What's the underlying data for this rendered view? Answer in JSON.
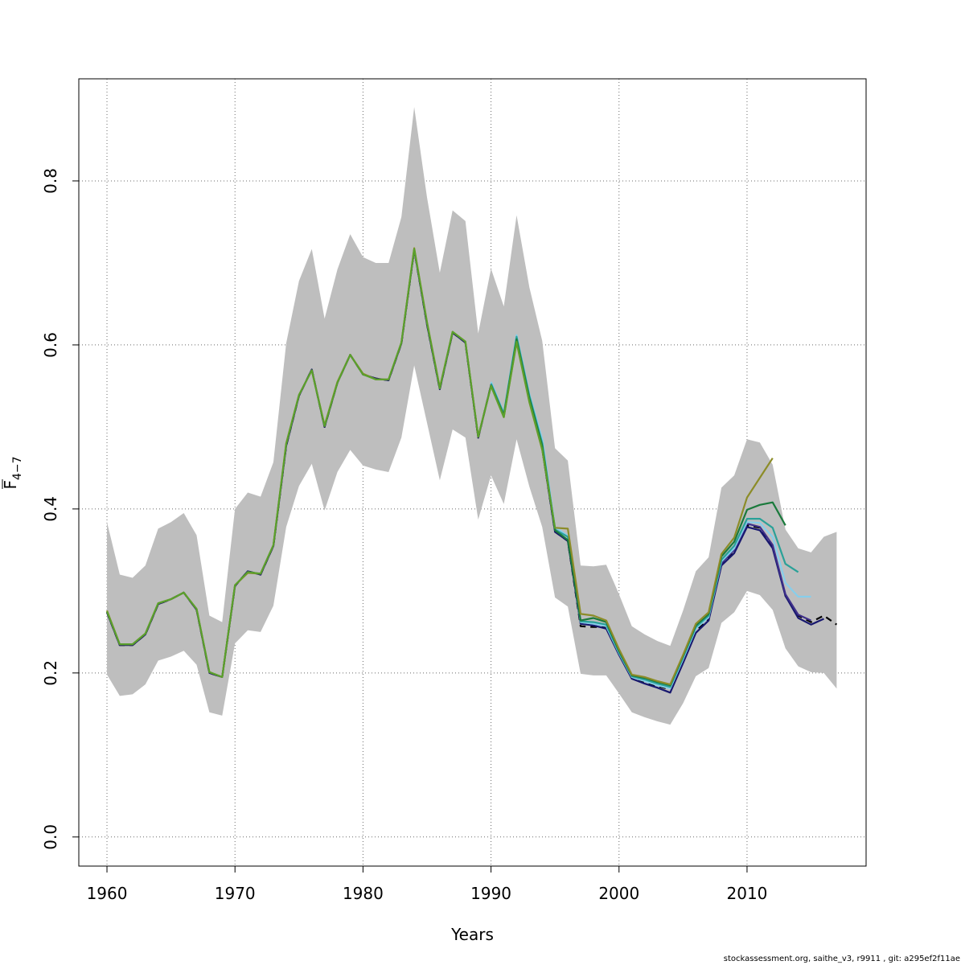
{
  "chart_data": {
    "type": "line",
    "xlabel": "Years",
    "ylabel_base": "F",
    "ylabel_sub": "4−7",
    "xlim": [
      1957.8,
      2019.3
    ],
    "ylim": [
      -0.0355,
      0.9245
    ],
    "x_ticks": [
      1960,
      1970,
      1980,
      1990,
      2000,
      2010
    ],
    "x_tick_labels": [
      "1960",
      "1970",
      "1980",
      "1990",
      "2000",
      "2010"
    ],
    "y_ticks": [
      0.0,
      0.2,
      0.4,
      0.6,
      0.8
    ],
    "y_tick_labels": [
      "0.0",
      "0.2",
      "0.4",
      "0.6",
      "0.8"
    ],
    "grid": true,
    "band_color": "#bebebe",
    "confidence_band": {
      "x": [
        1960,
        1961,
        1962,
        1963,
        1964,
        1965,
        1966,
        1967,
        1968,
        1969,
        1970,
        1971,
        1972,
        1973,
        1974,
        1975,
        1976,
        1977,
        1978,
        1979,
        1980,
        1981,
        1982,
        1983,
        1984,
        1985,
        1986,
        1987,
        1988,
        1989,
        1990,
        1991,
        1992,
        1993,
        1994,
        1995,
        1996,
        1997,
        1998,
        1999,
        2000,
        2001,
        2002,
        2003,
        2004,
        2005,
        2006,
        2007,
        2008,
        2009,
        2010,
        2011,
        2012,
        2013,
        2014,
        2015,
        2016,
        2017
      ],
      "lower": [
        0.198,
        0.172,
        0.174,
        0.186,
        0.215,
        0.22,
        0.227,
        0.21,
        0.152,
        0.148,
        0.236,
        0.252,
        0.25,
        0.282,
        0.378,
        0.428,
        0.455,
        0.398,
        0.445,
        0.472,
        0.453,
        0.448,
        0.445,
        0.487,
        0.575,
        0.505,
        0.435,
        0.497,
        0.487,
        0.387,
        0.441,
        0.406,
        0.485,
        0.427,
        0.378,
        0.292,
        0.281,
        0.199,
        0.197,
        0.197,
        0.175,
        0.152,
        0.146,
        0.141,
        0.137,
        0.163,
        0.196,
        0.206,
        0.261,
        0.274,
        0.3,
        0.295,
        0.277,
        0.23,
        0.208,
        0.201,
        0.2,
        0.181
      ],
      "upper": [
        0.384,
        0.32,
        0.316,
        0.331,
        0.376,
        0.384,
        0.395,
        0.368,
        0.27,
        0.262,
        0.4,
        0.42,
        0.415,
        0.457,
        0.602,
        0.678,
        0.717,
        0.632,
        0.692,
        0.735,
        0.707,
        0.7,
        0.7,
        0.756,
        0.89,
        0.78,
        0.688,
        0.764,
        0.751,
        0.614,
        0.693,
        0.647,
        0.758,
        0.67,
        0.605,
        0.474,
        0.459,
        0.331,
        0.33,
        0.332,
        0.296,
        0.257,
        0.247,
        0.239,
        0.233,
        0.276,
        0.324,
        0.341,
        0.426,
        0.441,
        0.485,
        0.481,
        0.454,
        0.375,
        0.352,
        0.347,
        0.366,
        0.372
      ]
    },
    "series": [
      {
        "color": "#000000",
        "dash": "8,6",
        "x": [
          1960,
          1961,
          1962,
          1963,
          1964,
          1965,
          1966,
          1967,
          1968,
          1969,
          1970,
          1971,
          1972,
          1973,
          1974,
          1975,
          1976,
          1977,
          1978,
          1979,
          1980,
          1981,
          1982,
          1983,
          1984,
          1985,
          1986,
          1987,
          1988,
          1989,
          1990,
          1991,
          1992,
          1993,
          1994,
          1995,
          1996,
          1997,
          1998,
          1999,
          2000,
          2001,
          2002,
          2003,
          2004,
          2005,
          2006,
          2007,
          2008,
          2009,
          2010,
          2011,
          2012,
          2013,
          2014,
          2015,
          2016,
          2017
        ],
        "y": [
          0.274,
          0.234,
          0.234,
          0.247,
          0.284,
          0.29,
          0.298,
          0.277,
          0.2,
          0.195,
          0.306,
          0.324,
          0.32,
          0.355,
          0.477,
          0.538,
          0.57,
          0.5,
          0.554,
          0.588,
          0.564,
          0.559,
          0.557,
          0.602,
          0.716,
          0.625,
          0.546,
          0.615,
          0.603,
          0.487,
          0.551,
          0.513,
          0.606,
          0.533,
          0.473,
          0.372,
          0.361,
          0.257,
          0.256,
          0.256,
          0.224,
          0.195,
          0.189,
          0.184,
          0.18,
          0.215,
          0.252,
          0.266,
          0.333,
          0.348,
          0.38,
          0.377,
          0.355,
          0.294,
          0.27,
          0.262,
          0.27,
          0.259
        ]
      },
      {
        "color": "#17176e",
        "x": [
          1960,
          1961,
          1962,
          1963,
          1964,
          1965,
          1966,
          1967,
          1968,
          1969,
          1970,
          1971,
          1972,
          1973,
          1974,
          1975,
          1976,
          1977,
          1978,
          1979,
          1980,
          1981,
          1982,
          1983,
          1984,
          1985,
          1986,
          1987,
          1988,
          1989,
          1990,
          1991,
          1992,
          1993,
          1994,
          1995,
          1996,
          1997,
          1998,
          1999,
          2000,
          2001,
          2002,
          2003,
          2004,
          2005,
          2006,
          2007,
          2008,
          2009,
          2010,
          2011,
          2012,
          2013,
          2014,
          2015,
          2016
        ],
        "y": [
          0.274,
          0.234,
          0.234,
          0.247,
          0.284,
          0.29,
          0.298,
          0.277,
          0.2,
          0.195,
          0.306,
          0.324,
          0.32,
          0.355,
          0.477,
          0.538,
          0.57,
          0.5,
          0.554,
          0.588,
          0.564,
          0.559,
          0.557,
          0.602,
          0.716,
          0.625,
          0.546,
          0.615,
          0.603,
          0.487,
          0.551,
          0.513,
          0.606,
          0.533,
          0.473,
          0.372,
          0.361,
          0.26,
          0.258,
          0.254,
          0.222,
          0.193,
          0.187,
          0.182,
          0.176,
          0.212,
          0.249,
          0.264,
          0.331,
          0.346,
          0.378,
          0.374,
          0.352,
          0.294,
          0.267,
          0.259,
          0.266
        ]
      },
      {
        "color": "#3e2f8a",
        "x": [
          2008,
          2009,
          2010,
          2011,
          2012,
          2013,
          2014,
          2015
        ],
        "y": [
          0.334,
          0.35,
          0.382,
          0.378,
          0.356,
          0.296,
          0.271,
          0.264
        ]
      },
      {
        "color": "#87ceeb",
        "x": [
          1990,
          1991,
          1992,
          1993,
          1994,
          1995,
          1996,
          1997,
          1998,
          1999,
          2000,
          2001,
          2002,
          2003,
          2004,
          2005,
          2006,
          2007,
          2008,
          2009,
          2010,
          2011,
          2012,
          2013,
          2014,
          2015
        ],
        "y": [
          0.555,
          0.517,
          0.612,
          0.54,
          0.485,
          0.378,
          0.367,
          0.262,
          0.26,
          0.257,
          0.224,
          0.195,
          0.19,
          0.185,
          0.181,
          0.217,
          0.254,
          0.268,
          0.336,
          0.352,
          0.384,
          0.383,
          0.366,
          0.31,
          0.293,
          0.293
        ]
      },
      {
        "color": "#2aa198",
        "x": [
          1990,
          1991,
          1992,
          1993,
          1994,
          1995,
          1996,
          1997,
          1998,
          1999,
          2000,
          2001,
          2002,
          2003,
          2004,
          2005,
          2006,
          2007,
          2008,
          2009,
          2010,
          2011,
          2012,
          2013,
          2014
        ],
        "y": [
          0.553,
          0.516,
          0.61,
          0.538,
          0.48,
          0.375,
          0.366,
          0.263,
          0.262,
          0.259,
          0.225,
          0.196,
          0.192,
          0.187,
          0.183,
          0.219,
          0.256,
          0.27,
          0.338,
          0.355,
          0.388,
          0.388,
          0.377,
          0.333,
          0.323
        ]
      },
      {
        "color": "#1a7a3c",
        "x": [
          1990,
          1991,
          1992,
          1993,
          1994,
          1995,
          1996,
          1997,
          1998,
          1999,
          2000,
          2001,
          2002,
          2003,
          2004,
          2005,
          2006,
          2007,
          2008,
          2009,
          2010,
          2011,
          2012,
          2013
        ],
        "y": [
          0.551,
          0.514,
          0.607,
          0.535,
          0.477,
          0.374,
          0.362,
          0.264,
          0.267,
          0.262,
          0.227,
          0.197,
          0.194,
          0.189,
          0.185,
          0.221,
          0.258,
          0.272,
          0.342,
          0.36,
          0.399,
          0.405,
          0.408,
          0.38
        ]
      },
      {
        "color": "#8c8c28",
        "x": [
          1960,
          1961,
          1962,
          1963,
          1964,
          1965,
          1966,
          1967,
          1968,
          1969,
          1970,
          1971,
          1972,
          1973,
          1974,
          1975,
          1976,
          1977,
          1978,
          1979,
          1980,
          1981,
          1982,
          1983,
          1984,
          1985,
          1986,
          1987,
          1988,
          1989,
          1990,
          1991,
          1992,
          1993,
          1994,
          1995,
          1996,
          1997,
          1998,
          1999,
          2000,
          2001,
          2002,
          2003,
          2004,
          2005,
          2006,
          2007,
          2008,
          2009,
          2010,
          2011,
          2012
        ],
        "y": [
          0.276,
          0.235,
          0.235,
          0.248,
          0.285,
          0.29,
          0.298,
          0.278,
          0.201,
          0.195,
          0.307,
          0.322,
          0.321,
          0.356,
          0.48,
          0.539,
          0.569,
          0.502,
          0.555,
          0.588,
          0.565,
          0.558,
          0.558,
          0.603,
          0.718,
          0.628,
          0.548,
          0.616,
          0.604,
          0.488,
          0.55,
          0.512,
          0.603,
          0.53,
          0.472,
          0.377,
          0.376,
          0.272,
          0.27,
          0.264,
          0.229,
          0.198,
          0.195,
          0.19,
          0.186,
          0.222,
          0.26,
          0.274,
          0.345,
          0.365,
          0.414,
          0.438,
          0.462
        ]
      },
      {
        "color": "#5aa02c",
        "x": [
          1960,
          1961,
          1962,
          1963,
          1964,
          1965,
          1966,
          1967,
          1968,
          1969,
          1970,
          1971,
          1972,
          1973,
          1974,
          1975,
          1976,
          1977,
          1978,
          1979,
          1980,
          1981,
          1982,
          1983,
          1984,
          1985,
          1986,
          1987,
          1988,
          1989,
          1990,
          1991,
          1992,
          1993,
          1994,
          1995
        ],
        "y": [
          0.275,
          0.235,
          0.235,
          0.248,
          0.285,
          0.29,
          0.298,
          0.278,
          0.201,
          0.195,
          0.307,
          0.323,
          0.321,
          0.356,
          0.479,
          0.539,
          0.569,
          0.501,
          0.554,
          0.588,
          0.564,
          0.558,
          0.558,
          0.603,
          0.717,
          0.627,
          0.547,
          0.616,
          0.604,
          0.488,
          0.55,
          0.512,
          0.604,
          0.531,
          0.473,
          0.376
        ]
      }
    ]
  },
  "footer_text": "stockassessment.org, saithe_v3, r9911 , git: a295ef2f11ae"
}
